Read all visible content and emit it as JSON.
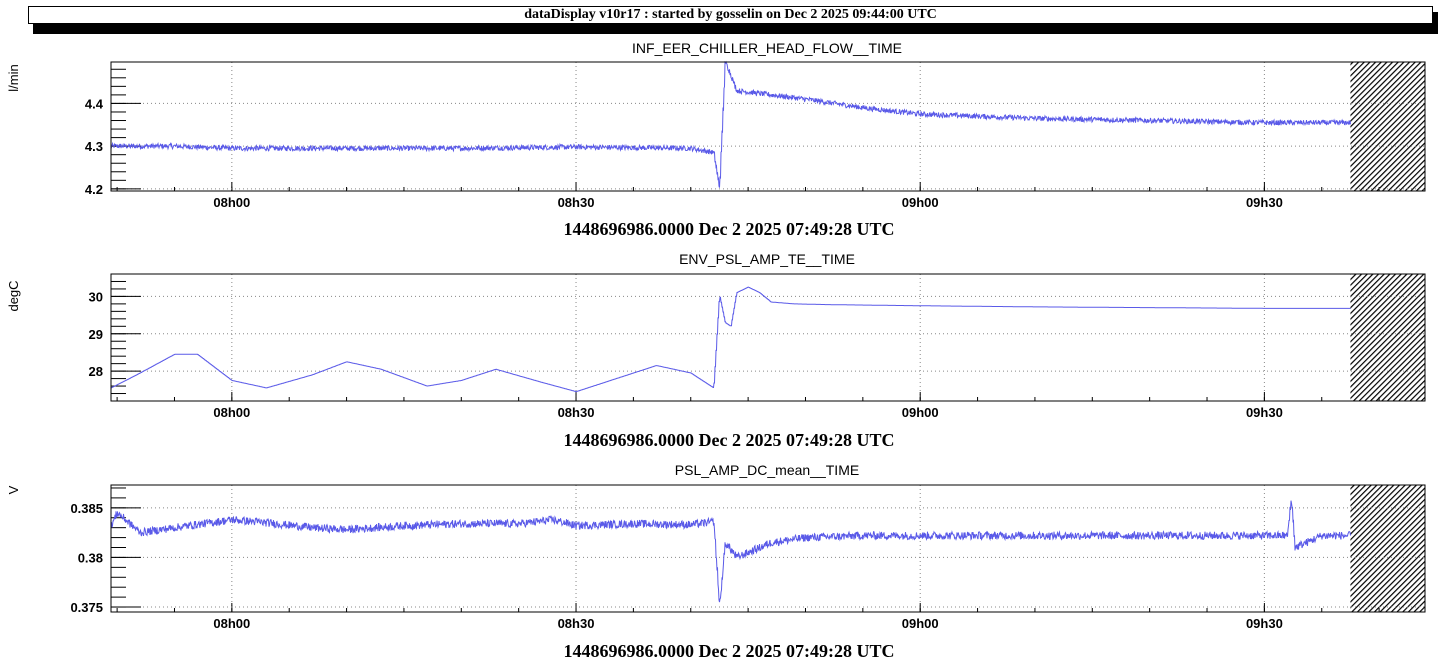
{
  "header": {
    "title": "dataDisplay v10r17 : started by gosselin on Dec  2 2025 09:44:00 UTC"
  },
  "colors": {
    "trace": "#5a5ae8",
    "axis": "#000000",
    "grid": "#888888",
    "hatch": "#000000"
  },
  "x_axis_info": {
    "start_time_utc": "07:49:28",
    "end_time_utc": "09:44:00",
    "data_end_utc": "09:37:30",
    "tick_labels": [
      "08h00",
      "08h30",
      "09h00",
      "09h30"
    ]
  },
  "chart_data": [
    {
      "type": "line",
      "title": "INF_EER_CHILLER_HEAD_FLOW__TIME",
      "ylabel": "l/min",
      "xlabel": "1448696986.0000 Dec 2 2025 07:49:28 UTC",
      "ylim": [
        4.195,
        4.497
      ],
      "yticks": [
        4.2,
        4.3,
        4.4
      ],
      "ytick_labels": [
        "4.2",
        "4.3",
        "4.4"
      ],
      "grid": true,
      "series": [
        {
          "x": [
            "07:49:28",
            "07:55",
            "08:00",
            "08:10",
            "08:20",
            "08:30",
            "08:40",
            "08:42",
            "08:42:30",
            "08:43",
            "08:44",
            "08:50",
            "08:55",
            "09:00",
            "09:10",
            "09:20",
            "09:30",
            "09:37:30"
          ],
          "y": [
            4.3,
            4.3,
            4.295,
            4.295,
            4.295,
            4.298,
            4.295,
            4.285,
            4.2,
            4.5,
            4.43,
            4.41,
            4.39,
            4.375,
            4.365,
            4.36,
            4.355,
            4.355
          ]
        }
      ]
    },
    {
      "type": "line",
      "title": "ENV_PSL_AMP_TE__TIME",
      "ylabel": "degC",
      "xlabel": "1448696986.0000 Dec 2 2025 07:49:28 UTC",
      "ylim": [
        27.2,
        30.6
      ],
      "yticks": [
        28,
        29,
        30
      ],
      "ytick_labels": [
        "28",
        "29",
        "30"
      ],
      "grid": true,
      "series": [
        {
          "x": [
            "07:49:28",
            "07:52",
            "07:55",
            "07:57",
            "08:00",
            "08:03",
            "08:07",
            "08:10",
            "08:13",
            "08:17",
            "08:20",
            "08:23",
            "08:27",
            "08:30",
            "08:33",
            "08:37",
            "08:40",
            "08:42",
            "08:42:30",
            "08:43",
            "08:43:30",
            "08:44",
            "08:45",
            "08:46",
            "08:47",
            "08:49",
            "08:52",
            "09:00",
            "09:10",
            "09:20",
            "09:30",
            "09:37:30"
          ],
          "y": [
            27.55,
            27.95,
            28.45,
            28.45,
            27.75,
            27.55,
            27.9,
            28.25,
            28.05,
            27.6,
            27.75,
            28.05,
            27.7,
            27.45,
            27.75,
            28.15,
            27.95,
            27.55,
            30.05,
            29.3,
            29.2,
            30.1,
            30.25,
            30.1,
            29.85,
            29.8,
            29.78,
            29.75,
            29.72,
            29.7,
            29.68,
            29.68
          ]
        }
      ]
    },
    {
      "type": "line",
      "title": "PSL_AMP_DC_mean__TIME",
      "ylabel": "V",
      "xlabel": "1448696986.0000 Dec 2 2025 07:49:28 UTC",
      "ylim": [
        0.3745,
        0.3873
      ],
      "yticks": [
        0.375,
        0.38,
        0.385
      ],
      "ytick_labels": [
        "0.375",
        "0.38",
        "0.385"
      ],
      "grid": true,
      "series": [
        {
          "x": [
            "07:49:28",
            "07:50",
            "07:52",
            "07:55",
            "08:00",
            "08:03",
            "08:07",
            "08:10",
            "08:15",
            "08:20",
            "08:25",
            "08:28",
            "08:30",
            "08:35",
            "08:40",
            "08:42",
            "08:42:30",
            "08:43",
            "08:44",
            "08:45",
            "08:47",
            "08:50",
            "08:55",
            "09:00",
            "09:10",
            "09:20",
            "09:30",
            "09:32",
            "09:32:20",
            "09:32:40",
            "09:35",
            "09:37:30"
          ],
          "y": [
            0.3832,
            0.3845,
            0.3825,
            0.383,
            0.3838,
            0.3835,
            0.383,
            0.3828,
            0.3832,
            0.3834,
            0.3834,
            0.3838,
            0.3832,
            0.3834,
            0.3833,
            0.3836,
            0.375,
            0.3815,
            0.38,
            0.3805,
            0.3815,
            0.382,
            0.3822,
            0.3822,
            0.3822,
            0.3822,
            0.3822,
            0.3822,
            0.386,
            0.381,
            0.3822,
            0.3822
          ]
        }
      ]
    }
  ]
}
